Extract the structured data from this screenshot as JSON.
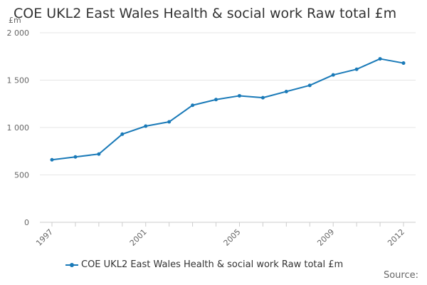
{
  "chart_data": {
    "type": "line",
    "title": "COE UKL2 East Wales Health & social work Raw total £m",
    "ylabel": "£m",
    "xlabel": "",
    "ylim": [
      0,
      2000
    ],
    "yticks": [
      0,
      500,
      1000,
      1500,
      2000
    ],
    "ytick_labels": [
      "0",
      "500",
      "1 000",
      "1 500",
      "2 000"
    ],
    "x": [
      1997,
      1998,
      1999,
      2000,
      2001,
      2002,
      2003,
      2004,
      2005,
      2006,
      2007,
      2008,
      2009,
      2010,
      2011,
      2012
    ],
    "xtick_labels": [
      "1997",
      "2001",
      "2005",
      "2009",
      "2012"
    ],
    "series": [
      {
        "name": "COE UKL2 East Wales Health & social work Raw total £m",
        "values": [
          660,
          690,
          720,
          930,
          1015,
          1060,
          1235,
          1295,
          1335,
          1315,
          1380,
          1445,
          1555,
          1615,
          1725,
          1680
        ]
      }
    ],
    "grid": true,
    "legend_position": "bottom"
  },
  "colors": {
    "series": "#1a7ab8",
    "grid": "#e6e6e6",
    "axis": "#cccccc"
  },
  "footer": {
    "source_label": "Source:"
  }
}
